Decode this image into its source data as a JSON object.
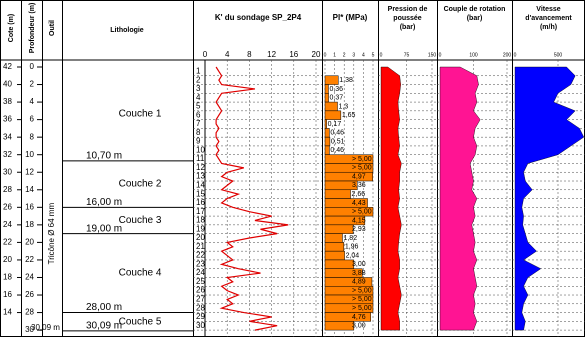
{
  "headers": {
    "cote": "Cote (m)",
    "profondeur": "Profondeur (m)",
    "outil": "Outil",
    "lithologie": "Lithologie"
  },
  "cote": {
    "lim": [
      42,
      12
    ],
    "ticks": [
      42,
      40,
      38,
      36,
      34,
      32,
      30,
      28,
      26,
      24,
      22,
      20,
      18,
      16,
      14
    ]
  },
  "depth": {
    "lim": [
      0,
      30
    ],
    "ticks": [
      0,
      2,
      4,
      6,
      8,
      10,
      12,
      14,
      16,
      18,
      20,
      22,
      24,
      26,
      28,
      30
    ],
    "end_label": "30,09 m"
  },
  "outil": "Tricône Ø 64 mm",
  "layers": [
    {
      "name": "Couche 1",
      "top": 0,
      "base": 10.7,
      "base_label": "10,70 m"
    },
    {
      "name": "Couche 2",
      "top": 10.7,
      "base": 16,
      "base_label": "16,00 m"
    },
    {
      "name": "Couche 3",
      "top": 16,
      "base": 19,
      "base_label": "19,00 m"
    },
    {
      "name": "Couche 4",
      "top": 19,
      "base": 28,
      "base_label": "28,00 m"
    },
    {
      "name": "Couche 5",
      "top": 28,
      "base": 30.09,
      "base_label": "30,09 m"
    }
  ],
  "k": {
    "title": "K' du sondage SP_2P4",
    "xlim": [
      0,
      20
    ],
    "xticks": [
      0,
      4,
      8,
      12,
      16,
      20
    ],
    "color": "#e00000",
    "rows": [
      1,
      2,
      3,
      4,
      5,
      6,
      7,
      8,
      9,
      10,
      11,
      12,
      13,
      14,
      15,
      16,
      17,
      18,
      19,
      20,
      21,
      22,
      23,
      24,
      25,
      26,
      27,
      28,
      29,
      30
    ],
    "depth": [
      0,
      0.5,
      1,
      1.5,
      2,
      2.5,
      3,
      3.5,
      4,
      4.5,
      5,
      5.5,
      6,
      6.5,
      7,
      7.5,
      8,
      8.5,
      9,
      9.5,
      10,
      10.5,
      11,
      11.5,
      12,
      12.5,
      13,
      13.5,
      14,
      14.5,
      15,
      15.5,
      16,
      16.5,
      17,
      17.5,
      18,
      18.5,
      19,
      19.5,
      20,
      20.5,
      21,
      21.5,
      22,
      22.5,
      23,
      23.5,
      24,
      24.5,
      25,
      25.5,
      26,
      26.5,
      27,
      27.5,
      28,
      28.5,
      29,
      29.5,
      30
    ],
    "values": [
      2,
      2.5,
      3,
      2.5,
      3,
      9,
      3,
      2.5,
      2,
      2.5,
      3,
      2.5,
      2,
      2,
      2.5,
      2,
      2,
      2.5,
      2,
      2.5,
      2,
      2.5,
      3,
      7,
      4,
      3,
      5,
      4,
      3,
      6,
      4,
      3,
      5,
      8,
      12,
      9,
      15,
      10,
      13,
      8,
      4,
      5,
      3,
      4,
      5,
      3,
      6,
      10,
      4,
      5,
      3,
      4,
      6,
      4,
      5,
      3,
      7,
      12,
      8,
      13,
      9
    ]
  },
  "pl": {
    "title": "Pl* (MPa)",
    "xlim": [
      0,
      5
    ],
    "xticks": [
      0,
      1,
      2,
      3,
      4,
      5
    ],
    "color": "#ff8000",
    "depth": [
      2,
      3,
      4,
      5,
      6,
      7,
      8,
      9,
      10,
      11,
      12,
      13,
      14,
      15,
      16,
      17,
      18,
      19,
      20,
      21,
      22,
      23,
      24,
      25,
      26,
      27,
      28,
      29,
      30
    ],
    "values": [
      1.38,
      0.36,
      0.37,
      1.3,
      1.65,
      0.17,
      0.46,
      0.51,
      0.46,
      5,
      5,
      4.97,
      3.36,
      2.66,
      4.43,
      5,
      4.15,
      2.93,
      1.82,
      1.96,
      2.04,
      3.0,
      3.88,
      4.89,
      5,
      5,
      5,
      4.76,
      3.0
    ],
    "value_labels": [
      "1,38",
      "0,36",
      "0,37",
      "1,3",
      "1,65",
      "0,17",
      "0,46",
      "0,51",
      "0,46",
      "> 5,00",
      "> 5,00",
      "4,97",
      "3,36",
      "2,66",
      "4,43",
      "> 5,00",
      "4,15",
      "2,93",
      "1,82",
      "1,96",
      "2,04",
      "3,00",
      "3,88",
      "4,89",
      "> 5,00",
      "> 5,00",
      "> 5,00",
      "4,76",
      "3,00"
    ]
  },
  "params": [
    {
      "title": [
        "Pression de",
        "poussée",
        "(bar)"
      ],
      "xlim": [
        0,
        150
      ],
      "xticks": [
        75,
        150
      ],
      "color": "#ff0000",
      "depth": [
        0,
        1,
        2,
        3,
        4,
        5,
        6,
        7,
        8,
        9,
        10,
        11,
        12,
        13,
        14,
        15,
        16,
        17,
        18,
        19,
        20,
        21,
        22,
        23,
        24,
        25,
        26,
        27,
        28,
        29,
        30
      ],
      "values": [
        20,
        55,
        58,
        55,
        50,
        52,
        55,
        50,
        52,
        55,
        50,
        60,
        55,
        55,
        52,
        55,
        50,
        55,
        60,
        55,
        52,
        50,
        55,
        55,
        50,
        55,
        60,
        55,
        50,
        55,
        55
      ]
    },
    {
      "title": [
        "Couple de rotation",
        "(bar)"
      ],
      "xlim": [
        0,
        200
      ],
      "xticks": [
        100,
        200
      ],
      "color": "#ff1493",
      "depth": [
        0,
        1,
        2,
        3,
        4,
        5,
        6,
        7,
        8,
        9,
        10,
        11,
        12,
        13,
        14,
        15,
        16,
        17,
        18,
        19,
        20,
        21,
        22,
        23,
        24,
        25,
        26,
        27,
        28,
        29,
        30
      ],
      "values": [
        60,
        110,
        115,
        105,
        110,
        100,
        120,
        105,
        100,
        110,
        105,
        90,
        95,
        100,
        95,
        110,
        100,
        105,
        95,
        100,
        105,
        100,
        110,
        100,
        105,
        110,
        100,
        105,
        100,
        110,
        100
      ]
    },
    {
      "title": [
        "Vitesse",
        "d'avancement",
        "(m/h)"
      ],
      "xlim": [
        0,
        1000
      ],
      "xticks": [
        500,
        1000
      ],
      "color": "#0000ff",
      "depth": [
        0,
        1,
        2,
        3,
        4,
        5,
        6,
        7,
        8,
        9,
        10,
        11,
        12,
        13,
        14,
        15,
        16,
        17,
        18,
        19,
        20,
        21,
        22,
        23,
        24,
        25,
        26,
        27,
        28,
        29,
        30
      ],
      "values": [
        600,
        700,
        650,
        500,
        450,
        700,
        600,
        750,
        800,
        650,
        500,
        150,
        100,
        120,
        200,
        100,
        80,
        100,
        90,
        120,
        150,
        250,
        100,
        300,
        150,
        100,
        150,
        100,
        80,
        120,
        100
      ]
    }
  ]
}
